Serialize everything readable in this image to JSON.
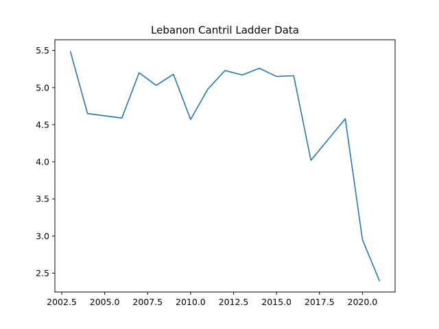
{
  "chart_data": {
    "type": "line",
    "title": "Lebanon Cantril Ladder Data",
    "xlabel": "",
    "ylabel": "",
    "xlim": [
      2002.1,
      2021.9
    ],
    "ylim": [
      2.245,
      5.645
    ],
    "x_ticks": [
      {
        "value": 2002.5,
        "label": "2002.5"
      },
      {
        "value": 2005.0,
        "label": "2005.0"
      },
      {
        "value": 2007.5,
        "label": "2007.5"
      },
      {
        "value": 2010.0,
        "label": "2010.0"
      },
      {
        "value": 2012.5,
        "label": "2012.5"
      },
      {
        "value": 2015.0,
        "label": "2015.0"
      },
      {
        "value": 2017.5,
        "label": "2017.5"
      },
      {
        "value": 2020.0,
        "label": "2020.0"
      }
    ],
    "y_ticks": [
      {
        "value": 2.5,
        "label": "2.5"
      },
      {
        "value": 3.0,
        "label": "3.0"
      },
      {
        "value": 3.5,
        "label": "3.5"
      },
      {
        "value": 4.0,
        "label": "4.0"
      },
      {
        "value": 4.5,
        "label": "4.5"
      },
      {
        "value": 5.0,
        "label": "5.0"
      },
      {
        "value": 5.5,
        "label": "5.5"
      }
    ],
    "grid": false,
    "series": [
      {
        "color": "#1f77b4",
        "x": [
          2003,
          2004,
          2006,
          2007,
          2008,
          2009,
          2010,
          2011,
          2012,
          2013,
          2014,
          2015,
          2016,
          2017,
          2019,
          2020,
          2021
        ],
        "y": [
          5.49,
          4.65,
          4.59,
          5.2,
          5.03,
          5.18,
          4.57,
          4.98,
          5.23,
          5.17,
          5.26,
          5.15,
          5.16,
          4.02,
          4.58,
          2.95,
          2.39
        ]
      }
    ]
  }
}
